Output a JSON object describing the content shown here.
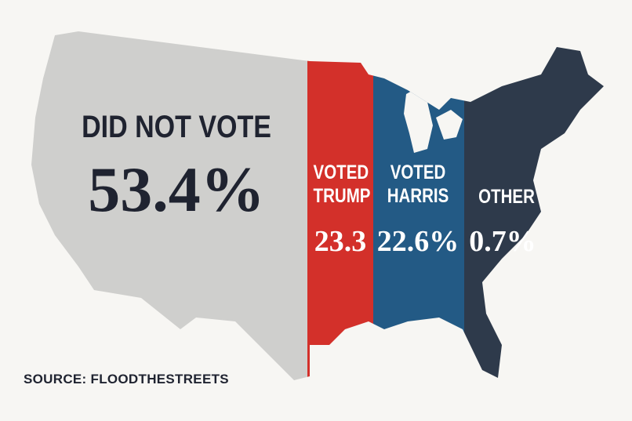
{
  "segments": [
    {
      "label": "DID NOT VOTE",
      "value": "53.4%",
      "color": "#cfcfcd",
      "text_color": "#1f2330"
    },
    {
      "label": "VOTED TRUMP",
      "value": "23.3",
      "color": "#d3302a",
      "text_color": "#ffffff"
    },
    {
      "label": "VOTED HARRIS",
      "value": "22.6%",
      "color": "#235a85",
      "text_color": "#ffffff"
    },
    {
      "label": "OTHER",
      "value": "0.7%",
      "color": "#2e3a4b",
      "text_color": "#ffffff"
    }
  ],
  "source": "SOURCE: FLOODTHESTREETS"
}
